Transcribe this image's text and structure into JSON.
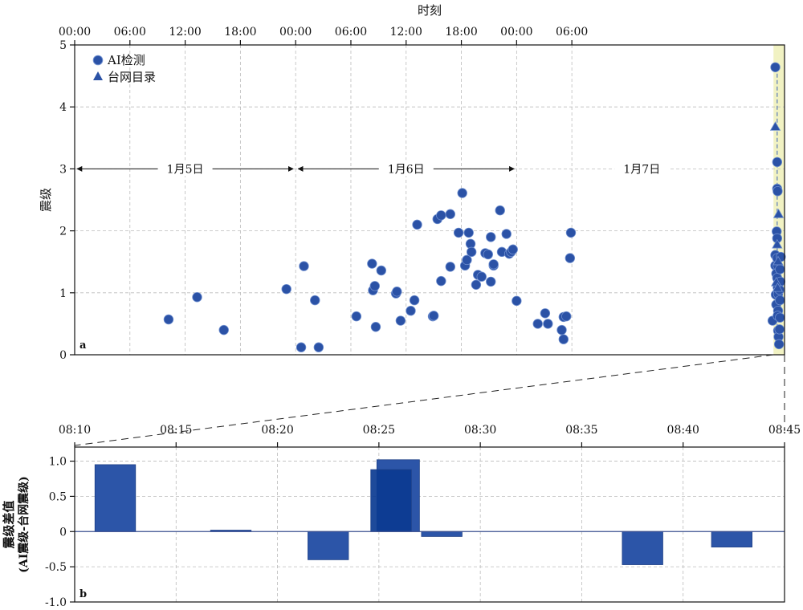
{
  "colors": {
    "point": "#2b52a6",
    "point_stroke": "#6f8fcf",
    "bar": "#2c55a8",
    "bar_dark": "#0b3b91",
    "highlight": "#f1f2c3",
    "grid": "#bbbbbb",
    "dashed": "#5a7ab8"
  },
  "chart_data": [
    {
      "type": "scatter",
      "panel_label": "a",
      "xlabel": "时刻",
      "ylabel": "震级",
      "x_range_hours": [
        0,
        77.1
      ],
      "ylim": [
        0,
        5
      ],
      "x_tick_labels": [
        "00:00",
        "06:00",
        "12:00",
        "18:00",
        "00:00",
        "06:00",
        "12:00",
        "18:00",
        "00:00",
        "06:00"
      ],
      "y_tick_labels": [
        "0",
        "1",
        "2",
        "3",
        "4",
        "5"
      ],
      "grid": true,
      "legend_position": "top-left",
      "legend": [
        {
          "symbol": "circle",
          "label": "AI检测"
        },
        {
          "symbol": "triangle",
          "label": "台网目录"
        }
      ],
      "day_annotations": [
        {
          "label": "1月5日",
          "x_start": 0,
          "x_end": 24
        },
        {
          "label": "1月6日",
          "x_start": 24,
          "x_end": 48
        },
        {
          "label": "1月7日",
          "x_start": 48,
          "x_end": 77.1
        }
      ],
      "highlight_x_range": [
        75.9,
        77.1
      ],
      "series": [
        {
          "name": "AI检测",
          "marker": "circle",
          "points": [
            [
              10.2,
              0.57
            ],
            [
              13.3,
              0.93
            ],
            [
              16.2,
              0.4
            ],
            [
              23.0,
              1.06
            ],
            [
              24.6,
              0.12
            ],
            [
              24.9,
              1.43
            ],
            [
              26.1,
              0.88
            ],
            [
              26.5,
              0.12
            ],
            [
              30.6,
              0.62
            ],
            [
              32.3,
              1.47
            ],
            [
              32.4,
              1.04
            ],
            [
              32.6,
              1.11
            ],
            [
              32.7,
              0.45
            ],
            [
              33.3,
              1.36
            ],
            [
              34.9,
              0.99
            ],
            [
              35.0,
              1.02
            ],
            [
              35.4,
              0.55
            ],
            [
              36.5,
              0.71
            ],
            [
              36.9,
              0.88
            ],
            [
              37.2,
              2.1
            ],
            [
              38.9,
              0.62
            ],
            [
              39.0,
              0.63
            ],
            [
              39.4,
              2.19
            ],
            [
              39.8,
              2.25
            ],
            [
              39.8,
              1.19
            ],
            [
              40.8,
              2.27
            ],
            [
              40.8,
              1.42
            ],
            [
              41.7,
              1.97
            ],
            [
              42.1,
              2.61
            ],
            [
              42.4,
              1.44
            ],
            [
              42.6,
              1.53
            ],
            [
              42.8,
              1.97
            ],
            [
              43.0,
              1.79
            ],
            [
              43.1,
              1.66
            ],
            [
              43.6,
              1.13
            ],
            [
              43.8,
              1.29
            ],
            [
              44.2,
              1.26
            ],
            [
              44.6,
              1.64
            ],
            [
              44.9,
              1.62
            ],
            [
              45.2,
              1.9
            ],
            [
              45.2,
              1.18
            ],
            [
              45.5,
              1.44
            ],
            [
              45.5,
              1.46
            ],
            [
              46.2,
              2.33
            ],
            [
              46.4,
              1.66
            ],
            [
              46.9,
              1.95
            ],
            [
              47.2,
              1.63
            ],
            [
              47.4,
              1.66
            ],
            [
              47.6,
              1.7
            ],
            [
              48.0,
              0.87
            ],
            [
              50.3,
              0.5
            ],
            [
              51.1,
              0.67
            ],
            [
              51.4,
              0.5
            ],
            [
              52.9,
              0.4
            ],
            [
              53.1,
              0.25
            ],
            [
              53.1,
              0.61
            ],
            [
              53.4,
              0.62
            ],
            [
              53.8,
              1.56
            ],
            [
              53.9,
              1.97
            ],
            [
              75.8,
              0.55
            ],
            [
              76.1,
              4.64
            ],
            [
              76.1,
              1.61
            ],
            [
              76.1,
              1.44
            ],
            [
              76.15,
              0.97
            ],
            [
              76.2,
              0.81
            ],
            [
              76.2,
              1.31
            ],
            [
              76.25,
              1.99
            ],
            [
              76.3,
              3.11
            ],
            [
              76.3,
              2.68
            ],
            [
              76.35,
              2.64
            ],
            [
              76.3,
              1.88
            ],
            [
              76.3,
              1.56
            ],
            [
              76.35,
              1.44
            ],
            [
              76.3,
              1.24
            ],
            [
              76.35,
              1.09
            ],
            [
              76.4,
              0.98
            ],
            [
              76.4,
              0.71
            ],
            [
              76.35,
              0.63
            ],
            [
              76.4,
              0.39
            ],
            [
              76.45,
              0.29
            ],
            [
              76.5,
              0.17
            ],
            [
              76.55,
              0.41
            ],
            [
              76.6,
              0.6
            ],
            [
              76.6,
              0.88
            ],
            [
              76.65,
              1.18
            ],
            [
              76.7,
              1.58
            ],
            [
              76.55,
              1.05
            ],
            [
              76.6,
              1.38
            ]
          ]
        },
        {
          "name": "台网目录",
          "marker": "triangle",
          "points": [
            [
              76.1,
              3.68
            ],
            [
              76.45,
              2.27
            ],
            [
              76.3,
              1.78
            ],
            [
              76.4,
              1.51
            ],
            [
              76.2,
              1.17
            ],
            [
              76.35,
              1.08
            ]
          ]
        }
      ]
    },
    {
      "type": "bar",
      "panel_label": "b",
      "ylabel": "震级差值",
      "ylabel_sub": "(AI震级-台网震级)",
      "x_range_minutes": [
        10,
        45
      ],
      "ylim": [
        -1.0,
        1.2
      ],
      "x_tick_labels": [
        "08:10",
        "08:15",
        "08:20",
        "08:25",
        "08:30",
        "08:35",
        "08:40",
        "08:45"
      ],
      "y_tick_labels": [
        "1.0",
        "0.5",
        "0",
        "-0.5",
        "-1.0"
      ],
      "grid": true,
      "bars": [
        {
          "x_start": 11.0,
          "x_end": 13.0,
          "value": 0.95
        },
        {
          "x_start": 16.7,
          "x_end": 18.7,
          "value": 0.02
        },
        {
          "x_start": 21.5,
          "x_end": 23.5,
          "value": -0.4
        },
        {
          "x_start": 24.9,
          "x_end": 27.0,
          "value": 1.02
        },
        {
          "x_start": 24.6,
          "x_end": 26.6,
          "value": 0.88
        },
        {
          "x_start": 27.1,
          "x_end": 29.1,
          "value": -0.07
        },
        {
          "x_start": 37.0,
          "x_end": 39.0,
          "value": -0.47
        },
        {
          "x_start": 41.4,
          "x_end": 43.4,
          "value": -0.22
        }
      ]
    }
  ]
}
